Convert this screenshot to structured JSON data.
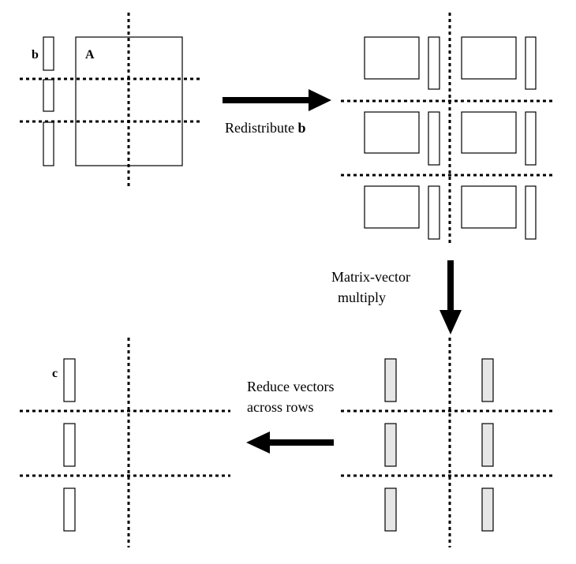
{
  "labels": {
    "b": "b",
    "A": "A",
    "c": "c"
  },
  "steps": {
    "redistribute": {
      "word": "Redistribute",
      "symbol": "b"
    },
    "multiply": {
      "line1": "Matrix-vector",
      "line2": "multiply"
    },
    "reduce": {
      "line1": "Reduce vectors",
      "line2": "across rows"
    }
  },
  "colors": {
    "stroke": "#000000",
    "result_fill": "#e6e6e6",
    "background": "#ffffff"
  }
}
